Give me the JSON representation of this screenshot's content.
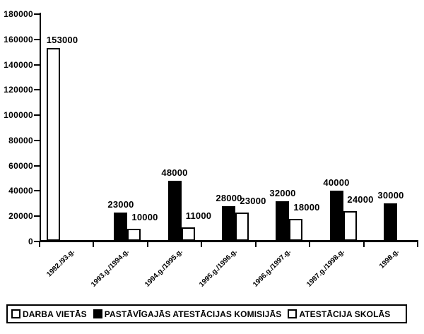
{
  "chart_data": {
    "type": "bar",
    "title": "",
    "xlabel": "",
    "ylabel": "",
    "categories": [
      "1992./93.g.",
      "1993.g./1994.g.",
      "1994.g./1995.g.",
      "1995.g./1996.g.",
      "1996.g./1997.g.",
      "1997.g./1998.g.",
      "1998.g."
    ],
    "series": [
      {
        "name": "DARBA VIETĀS",
        "fill": "#ffffff",
        "values": [
          153000,
          null,
          null,
          null,
          null,
          null,
          null
        ]
      },
      {
        "name": "PASTĀVĪGAJĀS ATESTĀCIJAS KOMISIJĀS",
        "fill": "#000000",
        "values": [
          null,
          23000,
          48000,
          28000,
          32000,
          40000,
          30000
        ]
      },
      {
        "name": "ATESTĀCIJA SKOLĀS",
        "fill": "#ffffff",
        "values": [
          null,
          10000,
          11000,
          23000,
          18000,
          24000,
          null
        ]
      }
    ],
    "data_labels": true,
    "yticks": [
      0,
      20000,
      40000,
      60000,
      80000,
      100000,
      120000,
      140000,
      160000,
      180000
    ],
    "ylim": [
      0,
      180000
    ],
    "grid": false,
    "legend_position": "bottom",
    "bar_border_color": "#000000",
    "axis_color": "#000000",
    "background_color": "#ffffff"
  }
}
